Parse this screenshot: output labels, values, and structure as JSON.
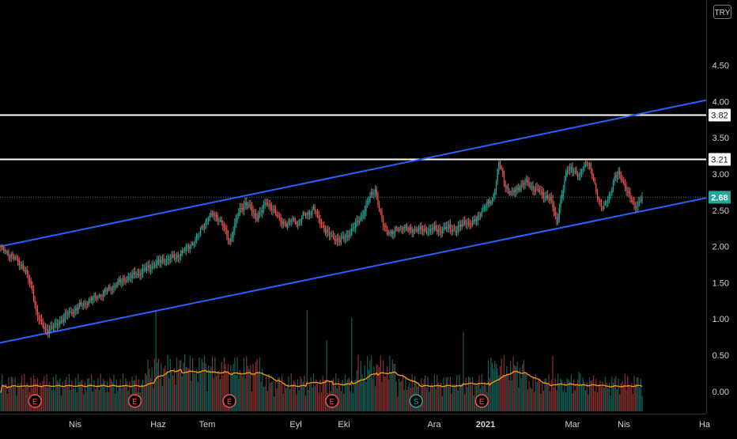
{
  "chart_data": {
    "type": "candlestick",
    "currency": "TRY",
    "y_ticks": [
      "4.50",
      "4.00",
      "3.50",
      "3.00",
      "2.50",
      "2.00",
      "1.50",
      "1.00",
      "0.50",
      "0.00"
    ],
    "y_tick_values": [
      4.5,
      4.0,
      3.5,
      3.0,
      2.5,
      2.0,
      1.5,
      1.0,
      0.5,
      0.0
    ],
    "ylim": [
      -0.4,
      5.2
    ],
    "x_ticks": [
      "Nis",
      "Haz",
      "Tem",
      "Eyl",
      "Eki",
      "Ara",
      "2021",
      "Mar",
      "Nis",
      "Ha"
    ],
    "x_tick_bold": [
      false,
      false,
      false,
      false,
      false,
      false,
      true,
      false,
      false,
      false
    ],
    "last_price": 2.68,
    "last_price_label": "2.68",
    "horizontal_levels": [
      {
        "value": 3.82,
        "label": "3.82",
        "color": "#ffffff"
      },
      {
        "value": 3.21,
        "label": "3.21",
        "color": "#ffffff"
      }
    ],
    "channel_upper": {
      "from_value": 2.0,
      "to_value": 4.02
    },
    "channel_lower": {
      "from_value": 0.67,
      "to_value": 2.67
    },
    "price_path": [
      [
        0,
        1.98
      ],
      [
        5,
        1.92
      ],
      [
        9,
        1.85
      ],
      [
        13,
        1.8
      ],
      [
        17,
        1.72
      ],
      [
        21,
        1.55
      ],
      [
        24,
        1.4
      ],
      [
        27,
        1.1
      ],
      [
        30,
        0.95
      ],
      [
        33,
        0.87
      ],
      [
        36,
        0.85
      ],
      [
        40,
        0.88
      ],
      [
        44,
        0.95
      ],
      [
        50,
        1.05
      ],
      [
        58,
        1.15
      ],
      [
        68,
        1.26
      ],
      [
        78,
        1.36
      ],
      [
        88,
        1.48
      ],
      [
        96,
        1.56
      ],
      [
        104,
        1.62
      ],
      [
        112,
        1.7
      ],
      [
        120,
        1.78
      ],
      [
        128,
        1.83
      ],
      [
        134,
        1.86
      ],
      [
        140,
        1.95
      ],
      [
        146,
        2.05
      ],
      [
        150,
        2.15
      ],
      [
        154,
        2.3
      ],
      [
        158,
        2.4
      ],
      [
        162,
        2.44
      ],
      [
        166,
        2.38
      ],
      [
        170,
        2.25
      ],
      [
        174,
        2.05
      ],
      [
        178,
        2.3
      ],
      [
        182,
        2.5
      ],
      [
        186,
        2.6
      ],
      [
        190,
        2.52
      ],
      [
        194,
        2.4
      ],
      [
        198,
        2.48
      ],
      [
        202,
        2.6
      ],
      [
        206,
        2.55
      ],
      [
        210,
        2.42
      ],
      [
        214,
        2.35
      ],
      [
        218,
        2.3
      ],
      [
        222,
        2.38
      ],
      [
        226,
        2.33
      ],
      [
        230,
        2.42
      ],
      [
        234,
        2.46
      ],
      [
        238,
        2.52
      ],
      [
        242,
        2.38
      ],
      [
        246,
        2.25
      ],
      [
        250,
        2.15
      ],
      [
        254,
        2.12
      ],
      [
        258,
        2.08
      ],
      [
        262,
        2.12
      ],
      [
        266,
        2.2
      ],
      [
        270,
        2.3
      ],
      [
        274,
        2.4
      ],
      [
        278,
        2.55
      ],
      [
        282,
        2.72
      ],
      [
        285,
        2.8
      ],
      [
        288,
        2.5
      ],
      [
        291,
        2.3
      ],
      [
        294,
        2.22
      ],
      [
        298,
        2.18
      ],
      [
        302,
        2.25
      ],
      [
        306,
        2.28
      ],
      [
        310,
        2.22
      ],
      [
        316,
        2.24
      ],
      [
        322,
        2.22
      ],
      [
        328,
        2.24
      ],
      [
        334,
        2.22
      ],
      [
        340,
        2.26
      ],
      [
        346,
        2.22
      ],
      [
        350,
        2.28
      ],
      [
        354,
        2.35
      ],
      [
        358,
        2.3
      ],
      [
        362,
        2.38
      ],
      [
        366,
        2.5
      ],
      [
        370,
        2.58
      ],
      [
        374,
        2.65
      ],
      [
        377,
        2.9
      ],
      [
        379,
        3.15
      ],
      [
        381,
        3.05
      ],
      [
        384,
        2.85
      ],
      [
        388,
        2.72
      ],
      [
        392,
        2.78
      ],
      [
        396,
        2.85
      ],
      [
        400,
        2.88
      ],
      [
        404,
        2.82
      ],
      [
        408,
        2.78
      ],
      [
        412,
        2.72
      ],
      [
        416,
        2.68
      ],
      [
        419,
        2.62
      ],
      [
        421,
        2.48
      ],
      [
        423,
        2.32
      ],
      [
        425,
        2.55
      ],
      [
        428,
        2.8
      ],
      [
        431,
        3.05
      ],
      [
        434,
        3.1
      ],
      [
        437,
        3.02
      ],
      [
        440,
        2.95
      ],
      [
        443,
        3.1
      ],
      [
        446,
        3.18
      ],
      [
        449,
        3.05
      ],
      [
        452,
        2.85
      ],
      [
        455,
        2.65
      ],
      [
        458,
        2.52
      ],
      [
        461,
        2.62
      ],
      [
        464,
        2.75
      ],
      [
        467,
        2.95
      ],
      [
        470,
        3.0
      ],
      [
        473,
        2.92
      ],
      [
        476,
        2.8
      ],
      [
        479,
        2.65
      ],
      [
        482,
        2.55
      ],
      [
        485,
        2.6
      ],
      [
        488,
        2.68
      ]
    ],
    "event_markers": [
      {
        "label": "E",
        "type": "earnings"
      },
      {
        "label": "E",
        "type": "earnings"
      },
      {
        "label": "E",
        "type": "earnings"
      },
      {
        "label": "E",
        "type": "earnings"
      },
      {
        "label": "S",
        "type": "split"
      },
      {
        "label": "E",
        "type": "earnings"
      }
    ]
  },
  "colors": {
    "background": "#000000",
    "up": "#26a69a",
    "down": "#ef5350",
    "channel": "#2962ff",
    "level": "#ffffff",
    "axis_text": "#d1d4dc",
    "volume_ma": "#ff9800",
    "last_price_bg": "#26a69a",
    "divider": "#2a2e39",
    "event_up": "#26a69a",
    "event_down": "#ef5350"
  }
}
